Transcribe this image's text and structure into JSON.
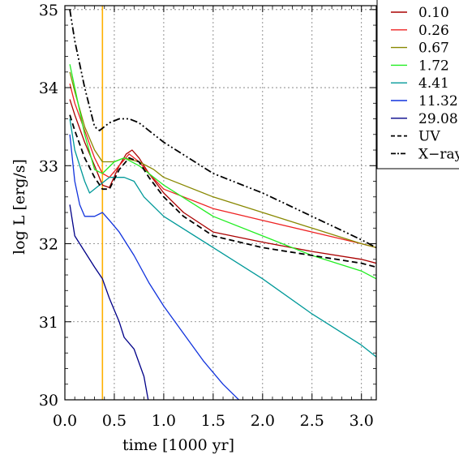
{
  "chart_data": {
    "type": "line",
    "xlabel": "time [1000 yr]",
    "ylabel": "log L [erg/s]",
    "xlim": [
      0.0,
      3.15
    ],
    "ylim": [
      30.0,
      35.05
    ],
    "x_ticks": [
      0.0,
      0.5,
      1.0,
      1.5,
      2.0,
      2.5,
      3.0
    ],
    "x_tick_labels": [
      "0.0",
      "0.5",
      "1.0",
      "1.5",
      "2.0",
      "2.5",
      "3.0"
    ],
    "y_ticks": [
      30,
      31,
      32,
      33,
      34,
      35
    ],
    "y_tick_labels": [
      "30",
      "31",
      "32",
      "33",
      "34",
      "35"
    ],
    "grid": true,
    "legend_position": "top-right",
    "vertical_line": {
      "x": 0.38,
      "color": "#ffb000"
    },
    "series": [
      {
        "name": "0.10",
        "color": "#aa0000",
        "dash": "solid",
        "points": [
          [
            0.05,
            33.85
          ],
          [
            0.1,
            33.65
          ],
          [
            0.2,
            33.3
          ],
          [
            0.3,
            33.0
          ],
          [
            0.38,
            32.75
          ],
          [
            0.45,
            32.72
          ],
          [
            0.55,
            33.0
          ],
          [
            0.62,
            33.15
          ],
          [
            0.68,
            33.2
          ],
          [
            0.75,
            33.1
          ],
          [
            0.85,
            32.9
          ],
          [
            1.0,
            32.65
          ],
          [
            1.2,
            32.4
          ],
          [
            1.5,
            32.15
          ],
          [
            2.0,
            32.02
          ],
          [
            2.5,
            31.9
          ],
          [
            3.0,
            31.8
          ],
          [
            3.15,
            31.75
          ]
        ]
      },
      {
        "name": "0.26",
        "color": "#ee2222",
        "dash": "solid",
        "points": [
          [
            0.05,
            34.05
          ],
          [
            0.1,
            33.8
          ],
          [
            0.2,
            33.45
          ],
          [
            0.3,
            33.1
          ],
          [
            0.38,
            32.9
          ],
          [
            0.45,
            32.85
          ],
          [
            0.55,
            33.0
          ],
          [
            0.65,
            33.15
          ],
          [
            0.75,
            33.05
          ],
          [
            0.85,
            32.9
          ],
          [
            1.0,
            32.7
          ],
          [
            1.5,
            32.45
          ],
          [
            2.0,
            32.3
          ],
          [
            2.5,
            32.15
          ],
          [
            3.0,
            32.0
          ],
          [
            3.15,
            31.95
          ]
        ]
      },
      {
        "name": "0.67",
        "color": "#888800",
        "dash": "solid",
        "points": [
          [
            0.05,
            34.2
          ],
          [
            0.1,
            33.95
          ],
          [
            0.2,
            33.5
          ],
          [
            0.3,
            33.2
          ],
          [
            0.38,
            33.05
          ],
          [
            0.5,
            33.05
          ],
          [
            0.6,
            33.1
          ],
          [
            0.75,
            33.05
          ],
          [
            0.9,
            32.95
          ],
          [
            1.0,
            32.85
          ],
          [
            1.5,
            32.6
          ],
          [
            2.0,
            32.4
          ],
          [
            2.5,
            32.2
          ],
          [
            3.0,
            32.0
          ],
          [
            3.15,
            31.95
          ]
        ]
      },
      {
        "name": "1.72",
        "color": "#22ee22",
        "dash": "solid",
        "points": [
          [
            0.05,
            34.3
          ],
          [
            0.1,
            34.0
          ],
          [
            0.2,
            33.4
          ],
          [
            0.3,
            32.95
          ],
          [
            0.38,
            32.9
          ],
          [
            0.5,
            33.05
          ],
          [
            0.6,
            33.1
          ],
          [
            0.75,
            33.0
          ],
          [
            0.9,
            32.85
          ],
          [
            1.0,
            32.75
          ],
          [
            1.5,
            32.35
          ],
          [
            2.0,
            32.1
          ],
          [
            2.5,
            31.85
          ],
          [
            3.0,
            31.65
          ],
          [
            3.15,
            31.55
          ]
        ]
      },
      {
        "name": "4.41",
        "color": "#009999",
        "dash": "solid",
        "points": [
          [
            0.05,
            33.6
          ],
          [
            0.1,
            33.2
          ],
          [
            0.2,
            32.8
          ],
          [
            0.25,
            32.65
          ],
          [
            0.35,
            32.75
          ],
          [
            0.45,
            32.85
          ],
          [
            0.6,
            32.85
          ],
          [
            0.7,
            32.8
          ],
          [
            0.8,
            32.6
          ],
          [
            1.0,
            32.35
          ],
          [
            1.5,
            31.95
          ],
          [
            2.0,
            31.55
          ],
          [
            2.5,
            31.1
          ],
          [
            3.0,
            30.7
          ],
          [
            3.15,
            30.55
          ]
        ]
      },
      {
        "name": "11.32",
        "color": "#1133dd",
        "dash": "solid",
        "points": [
          [
            0.05,
            33.4
          ],
          [
            0.1,
            32.8
          ],
          [
            0.15,
            32.5
          ],
          [
            0.2,
            32.35
          ],
          [
            0.3,
            32.35
          ],
          [
            0.38,
            32.4
          ],
          [
            0.45,
            32.3
          ],
          [
            0.55,
            32.15
          ],
          [
            0.7,
            31.85
          ],
          [
            0.85,
            31.5
          ],
          [
            1.0,
            31.2
          ],
          [
            1.2,
            30.85
          ],
          [
            1.4,
            30.5
          ],
          [
            1.6,
            30.2
          ],
          [
            1.8,
            29.95
          ]
        ]
      },
      {
        "name": "29.08",
        "color": "#000088",
        "dash": "solid",
        "points": [
          [
            0.05,
            32.5
          ],
          [
            0.1,
            32.1
          ],
          [
            0.2,
            31.9
          ],
          [
            0.3,
            31.7
          ],
          [
            0.38,
            31.55
          ],
          [
            0.45,
            31.3
          ],
          [
            0.55,
            31.0
          ],
          [
            0.6,
            30.8
          ],
          [
            0.7,
            30.65
          ],
          [
            0.8,
            30.3
          ],
          [
            0.85,
            29.95
          ]
        ]
      },
      {
        "name": "UV",
        "color": "#000000",
        "dash": "dash",
        "points": [
          [
            0.05,
            33.65
          ],
          [
            0.1,
            33.45
          ],
          [
            0.2,
            33.1
          ],
          [
            0.3,
            32.85
          ],
          [
            0.38,
            32.7
          ],
          [
            0.45,
            32.7
          ],
          [
            0.55,
            32.95
          ],
          [
            0.65,
            33.1
          ],
          [
            0.75,
            33.05
          ],
          [
            0.85,
            32.85
          ],
          [
            1.0,
            32.6
          ],
          [
            1.2,
            32.35
          ],
          [
            1.5,
            32.1
          ],
          [
            2.0,
            31.95
          ],
          [
            2.5,
            31.85
          ],
          [
            3.0,
            31.75
          ],
          [
            3.15,
            31.7
          ]
        ]
      },
      {
        "name": "X−ray",
        "color": "#000000",
        "dash": "dashdot",
        "points": [
          [
            0.05,
            35.0
          ],
          [
            0.1,
            34.6
          ],
          [
            0.2,
            34.0
          ],
          [
            0.3,
            33.5
          ],
          [
            0.35,
            33.45
          ],
          [
            0.45,
            33.55
          ],
          [
            0.55,
            33.6
          ],
          [
            0.65,
            33.6
          ],
          [
            0.75,
            33.55
          ],
          [
            1.0,
            33.3
          ],
          [
            1.5,
            32.9
          ],
          [
            2.0,
            32.65
          ],
          [
            2.5,
            32.35
          ],
          [
            3.0,
            32.05
          ],
          [
            3.15,
            31.95
          ]
        ]
      }
    ]
  }
}
